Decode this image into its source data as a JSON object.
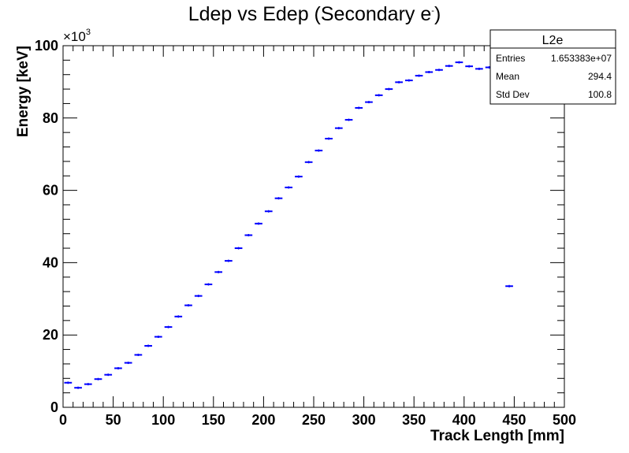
{
  "chart_data": {
    "type": "scatter",
    "title": "Ldep vs Edep (Secondary e",
    "title_superscript": "-",
    "title_suffix": ")",
    "xlabel": "Track Length [mm]",
    "ylabel": "Energy [keV]",
    "y_multiplier_base": "×10",
    "y_multiplier_exp": "3",
    "xlim": [
      0,
      500
    ],
    "ylim": [
      0,
      100
    ],
    "x_ticks": [
      0,
      50,
      100,
      150,
      200,
      250,
      300,
      350,
      400,
      450,
      500
    ],
    "y_ticks": [
      0,
      20,
      40,
      60,
      80,
      100
    ],
    "bin_width": 10,
    "marker_color": "#0000ff",
    "grid": false,
    "legend": "none",
    "series": [
      {
        "x": [
          5,
          15,
          25,
          35,
          45,
          55,
          65,
          75,
          85,
          95,
          105,
          115,
          125,
          135,
          145,
          155,
          165,
          175,
          185,
          195,
          205,
          215,
          225,
          235,
          245,
          255,
          265,
          275,
          285,
          295,
          305,
          315,
          325,
          335,
          345,
          355,
          365,
          375,
          385,
          395,
          405,
          415,
          425,
          445
        ],
        "y": [
          6.8,
          5.4,
          6.4,
          7.8,
          9.0,
          10.8,
          12.3,
          14.5,
          17.0,
          19.5,
          22.2,
          25.1,
          28.2,
          30.8,
          34.0,
          37.4,
          40.5,
          44.0,
          47.6,
          50.8,
          54.2,
          57.8,
          60.8,
          63.8,
          67.8,
          71.0,
          74.3,
          77.2,
          79.5,
          82.8,
          84.4,
          86.3,
          88.0,
          89.9,
          90.4,
          91.7,
          92.7,
          93.3,
          94.4,
          95.4,
          94.3,
          93.6,
          94.0,
          33.5
        ]
      }
    ]
  },
  "stats_box": {
    "name": "L2e",
    "rows": [
      {
        "label": "Entries",
        "value": "1.653383e+07"
      },
      {
        "label": "Mean",
        "value": "294.4"
      },
      {
        "label": "Std Dev",
        "value": "100.8"
      }
    ]
  }
}
